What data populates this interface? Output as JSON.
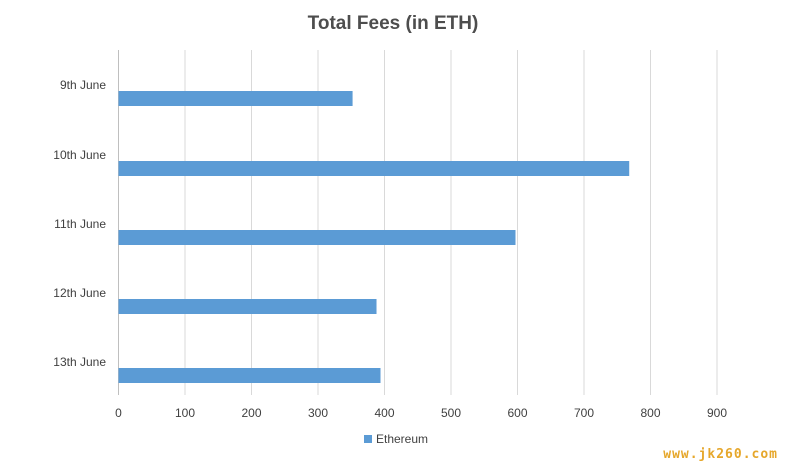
{
  "chart_data": {
    "type": "bar",
    "orientation": "horizontal",
    "title": "Total Fees (in ETH)",
    "categories": [
      "9th June",
      "10th June",
      "11th June",
      "12th June",
      "13th June"
    ],
    "series": [
      {
        "name": "Ethereum",
        "values": [
          352,
          768,
          597,
          388,
          394
        ],
        "color": "#5b9bd5"
      }
    ],
    "xlim": [
      0,
      900
    ],
    "x_ticks": [
      0,
      100,
      200,
      300,
      400,
      500,
      600,
      700,
      800,
      900
    ],
    "grid": true,
    "legend": "bottom"
  },
  "watermark": "www.jk260.com"
}
